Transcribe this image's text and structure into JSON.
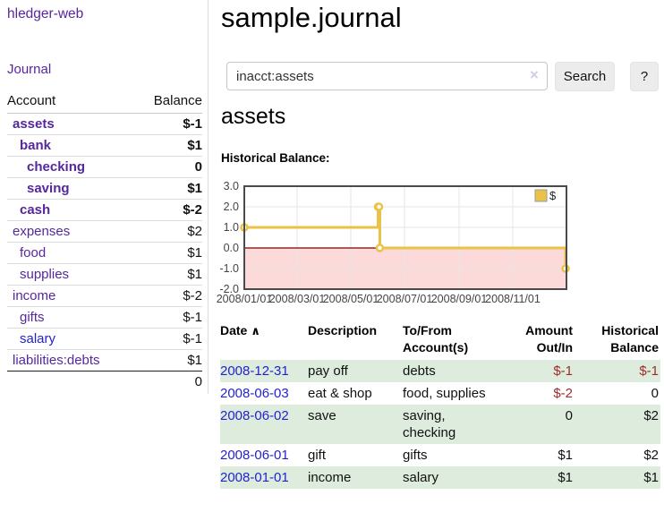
{
  "colors": {
    "purple-link": "#56279f",
    "blue-link": "#2422cf",
    "neg-strong": "#8f1d1d",
    "neg-table": "#9e2b2b",
    "neg-muted": "#bd7373",
    "row-green": "#ddecdd",
    "button-bg": "#ececec",
    "chart-line": "#e9c247",
    "chart-negative-fill": "#fcdada",
    "chart-zero-line": "#7a0000",
    "chart-grid": "#e6e6e6",
    "chart-border": "#4a4a4a"
  },
  "app": {
    "title": "hledger-web",
    "nav_journal": "Journal"
  },
  "sidebar": {
    "account_header": "Account",
    "balance_header": "Balance",
    "accounts": [
      {
        "name": "assets",
        "balance": "$-1",
        "indent": 0,
        "bold": true,
        "balance_style": "neg-strong",
        "link_color": "purple"
      },
      {
        "name": "bank",
        "balance": "$1",
        "indent": 1,
        "bold": true,
        "balance_style": "normal",
        "link_color": "purple"
      },
      {
        "name": "checking",
        "balance": "0",
        "indent": 2,
        "bold": true,
        "balance_style": "normal",
        "link_color": "purple"
      },
      {
        "name": "saving",
        "balance": "$1",
        "indent": 2,
        "bold": true,
        "balance_style": "normal",
        "link_color": "purple"
      },
      {
        "name": "cash",
        "balance": "$-2",
        "indent": 1,
        "bold": true,
        "balance_style": "neg-strong",
        "link_color": "purple"
      },
      {
        "name": "expenses",
        "balance": "$2",
        "indent": 0,
        "bold": false,
        "balance_style": "normal",
        "link_color": "purple"
      },
      {
        "name": "food",
        "balance": "$1",
        "indent": 1,
        "bold": false,
        "balance_style": "normal",
        "link_color": "purple"
      },
      {
        "name": "supplies",
        "balance": "$1",
        "indent": 1,
        "bold": false,
        "balance_style": "normal",
        "link_color": "purple"
      },
      {
        "name": "income",
        "balance": "$-2",
        "indent": 0,
        "bold": false,
        "balance_style": "neg-muted",
        "link_color": "purple"
      },
      {
        "name": "gifts",
        "balance": "$-1",
        "indent": 1,
        "bold": false,
        "balance_style": "neg-muted",
        "link_color": "purple"
      },
      {
        "name": "salary",
        "balance": "$-1",
        "indent": 1,
        "bold": false,
        "balance_style": "neg-muted",
        "link_color": "blue"
      },
      {
        "name": "liabilities:debts",
        "balance": "$1",
        "indent": 0,
        "bold": false,
        "balance_style": "normal",
        "link_color": "purple"
      }
    ],
    "total": "0"
  },
  "main": {
    "title": "sample.journal",
    "search": {
      "value": "inacct:assets",
      "clear_icon": "×",
      "search_label": "Search",
      "help_label": "?"
    },
    "account_title": "assets",
    "chart_label": "Historical Balance:"
  },
  "chart_data": {
    "type": "line",
    "step": true,
    "title": "Historical Balance",
    "legend": {
      "label": "$",
      "position": "top-right"
    },
    "grid": true,
    "x_range": [
      "2008-01-01",
      "2009-01-01"
    ],
    "ylim": [
      -2,
      3
    ],
    "y_ticks": [
      {
        "label": "3.0",
        "value": 3
      },
      {
        "label": "2.0",
        "value": 2
      },
      {
        "label": "1.0",
        "value": 1
      },
      {
        "label": "0.0",
        "value": 0
      },
      {
        "label": "-1.0",
        "value": -1
      },
      {
        "label": "-2.0",
        "value": -2
      }
    ],
    "x_ticks": [
      {
        "label": "2008/01/01",
        "date": "2008-01-01"
      },
      {
        "label": "2008/03/01",
        "date": "2008-03-01"
      },
      {
        "label": "2008/05/01",
        "date": "2008-05-01"
      },
      {
        "label": "2008/07/01",
        "date": "2008-07-01"
      },
      {
        "label": "2008/09/01",
        "date": "2008-09-01"
      },
      {
        "label": "2008/11/01",
        "date": "2008-11-01"
      }
    ],
    "series": [
      {
        "name": "$",
        "points": [
          {
            "date": "2008-01-01",
            "value": 1
          },
          {
            "date": "2008-06-01",
            "value": 2
          },
          {
            "date": "2008-06-02",
            "value": 2
          },
          {
            "date": "2008-06-03",
            "value": 0
          },
          {
            "date": "2008-12-31",
            "value": -1
          }
        ]
      }
    ],
    "negative_region": true
  },
  "register": {
    "headers": {
      "date": "Date",
      "sort_icon": "∧",
      "description": "Description",
      "accounts": "To/From Account(s)",
      "amount": "Amount Out/In",
      "balance": "Historical Balance"
    },
    "rows": [
      {
        "date": "2008-12-31",
        "description": "pay off",
        "accounts": "debts",
        "amount": "$-1",
        "amount_negative": true,
        "balance": "$-1",
        "balance_negative": true
      },
      {
        "date": "2008-06-03",
        "description": "eat & shop",
        "accounts": "food, supplies",
        "amount": "$-2",
        "amount_negative": true,
        "balance": "0",
        "balance_negative": false
      },
      {
        "date": "2008-06-02",
        "description": "save",
        "accounts": "saving, checking",
        "amount": "0",
        "amount_negative": false,
        "balance": "$2",
        "balance_negative": false
      },
      {
        "date": "2008-06-01",
        "description": "gift",
        "accounts": "gifts",
        "amount": "$1",
        "amount_negative": false,
        "balance": "$2",
        "balance_negative": false
      },
      {
        "date": "2008-01-01",
        "description": "income",
        "accounts": "salary",
        "amount": "$1",
        "amount_negative": false,
        "balance": "$1",
        "balance_negative": false
      }
    ]
  }
}
